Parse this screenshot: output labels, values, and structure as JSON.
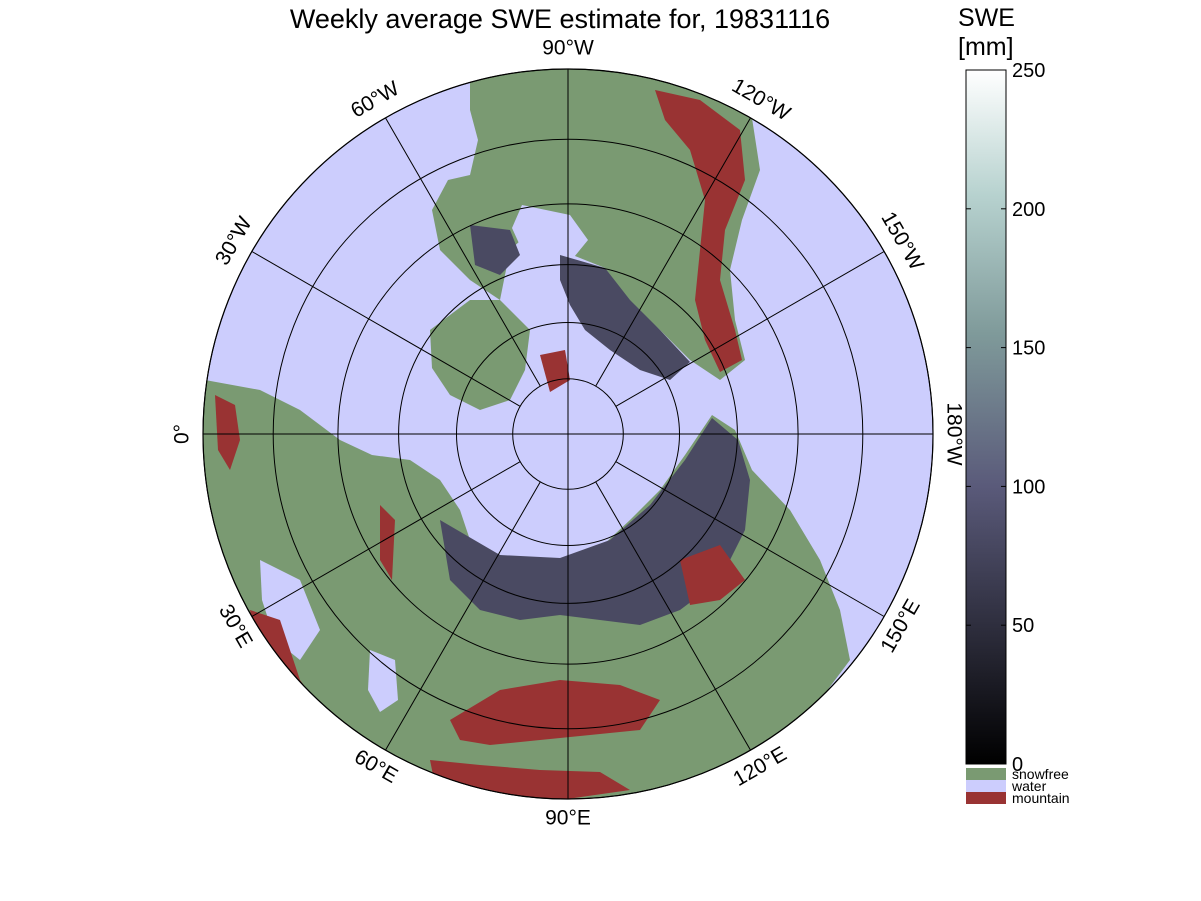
{
  "title": "Weekly average SWE estimate for, 19831116",
  "colorbar": {
    "label_line1": "SWE",
    "label_line2": "[mm]",
    "ticks": [
      "0",
      "50",
      "100",
      "150",
      "200",
      "250"
    ],
    "tick_values": [
      0,
      50,
      100,
      150,
      200,
      250
    ],
    "range": [
      0,
      250
    ],
    "categories": [
      {
        "label": "snowfree",
        "color": "#7a9a72"
      },
      {
        "label": "water",
        "color": "#cccdfd"
      },
      {
        "label": "mountain",
        "color": "#993333"
      }
    ]
  },
  "map": {
    "projection": "polar stereographic, north pole",
    "longitude_labels": [
      {
        "lon": 0,
        "label": "0°"
      },
      {
        "lon": 30,
        "label": "30°E"
      },
      {
        "lon": 60,
        "label": "60°E"
      },
      {
        "lon": 90,
        "label": "90°E"
      },
      {
        "lon": 120,
        "label": "120°E"
      },
      {
        "lon": 150,
        "label": "150°E"
      },
      {
        "lon": 180,
        "label": "180°W"
      },
      {
        "lon": -150,
        "label": "150°W"
      },
      {
        "lon": -120,
        "label": "120°W"
      },
      {
        "lon": -90,
        "label": "90°W"
      },
      {
        "lon": -60,
        "label": "60°W"
      },
      {
        "lon": -30,
        "label": "30°W"
      }
    ],
    "latitude_circles": [
      80,
      70,
      60,
      50,
      40,
      30
    ],
    "colors": {
      "water": "#cccdfd",
      "snowfree": "#7a9a72",
      "mountain": "#993333",
      "snow": "#4a4a62"
    }
  }
}
